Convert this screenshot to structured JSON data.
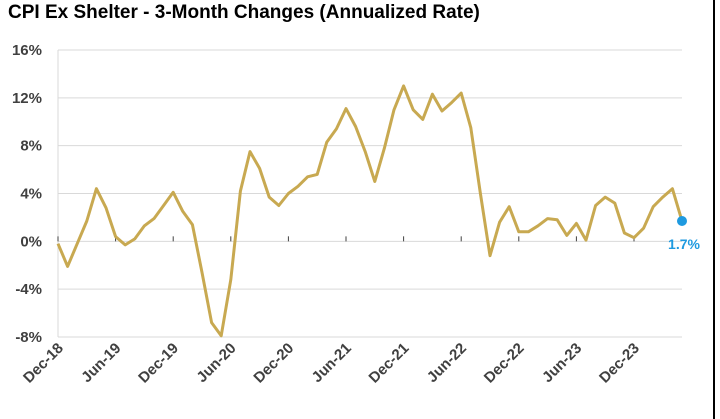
{
  "title": "CPI Ex Shelter - 3-Month Changes (Annualized Rate)",
  "colors": {
    "line": "#C8A951",
    "marker": "#1E9AE0",
    "grid": "#D9D9D9",
    "axis": "#404040"
  },
  "chart_data": {
    "type": "line",
    "title": "CPI Ex Shelter - 3-Month Changes (Annualized Rate)",
    "ylim": [
      -8,
      16
    ],
    "y_ticks": [
      "-8%",
      "-4%",
      "0%",
      "4%",
      "8%",
      "12%",
      "16%"
    ],
    "y_tick_values": [
      -8,
      -4,
      0,
      4,
      8,
      12,
      16
    ],
    "x_tick_labels": [
      "Dec-18",
      "Jun-19",
      "Dec-19",
      "Jun-20",
      "Dec-20",
      "Jun-21",
      "Dec-21",
      "Jun-22",
      "Dec-22",
      "Jun-23",
      "Dec-23"
    ],
    "x_tick_indices": [
      0,
      6,
      12,
      18,
      24,
      30,
      36,
      42,
      48,
      54,
      60
    ],
    "grid": true,
    "series": [
      {
        "x": [
          "Dec-18",
          "Jan-19",
          "Feb-19",
          "Mar-19",
          "Apr-19",
          "May-19",
          "Jun-19",
          "Jul-19",
          "Aug-19",
          "Sep-19",
          "Oct-19",
          "Nov-19",
          "Dec-19",
          "Jan-20",
          "Feb-20",
          "Mar-20",
          "Apr-20",
          "May-20",
          "Jun-20",
          "Jul-20",
          "Aug-20",
          "Sep-20",
          "Oct-20",
          "Nov-20",
          "Dec-20",
          "Jan-21",
          "Feb-21",
          "Mar-21",
          "Apr-21",
          "May-21",
          "Jun-21",
          "Jul-21",
          "Aug-21",
          "Sep-21",
          "Oct-21",
          "Nov-21",
          "Dec-21",
          "Jan-22",
          "Feb-22",
          "Mar-22",
          "Apr-22",
          "May-22",
          "Jun-22",
          "Jul-22",
          "Aug-22",
          "Sep-22",
          "Oct-22",
          "Nov-22",
          "Dec-22",
          "Jan-23",
          "Feb-23",
          "Mar-23",
          "Apr-23",
          "May-23",
          "Jun-23",
          "Jul-23",
          "Aug-23",
          "Sep-23",
          "Oct-23",
          "Nov-23",
          "Dec-23",
          "Jan-24",
          "Feb-24",
          "Mar-24",
          "Apr-24",
          "May-24"
        ],
        "values": [
          -0.2,
          -2.1,
          -0.2,
          1.7,
          4.4,
          2.8,
          0.4,
          -0.3,
          0.2,
          1.3,
          1.9,
          3.0,
          4.1,
          2.5,
          1.4,
          -2.6,
          -6.8,
          -7.9,
          -3.2,
          4.2,
          7.5,
          6.1,
          3.7,
          3.0,
          4.0,
          4.6,
          5.4,
          5.6,
          8.3,
          9.4,
          11.1,
          9.6,
          7.5,
          5.0,
          7.8,
          11.0,
          13.0,
          11.0,
          10.2,
          12.3,
          10.9,
          11.6,
          12.4,
          9.5,
          4.0,
          -1.2,
          1.6,
          2.9,
          0.8,
          0.8,
          1.3,
          1.9,
          1.8,
          0.5,
          1.5,
          0.1,
          3.0,
          3.7,
          3.2,
          0.7,
          0.3,
          1.1,
          2.9,
          3.7,
          4.4,
          1.7
        ]
      }
    ],
    "annotations": [
      {
        "x": "May-24",
        "y": 1.7,
        "text": "1.7%"
      }
    ]
  }
}
